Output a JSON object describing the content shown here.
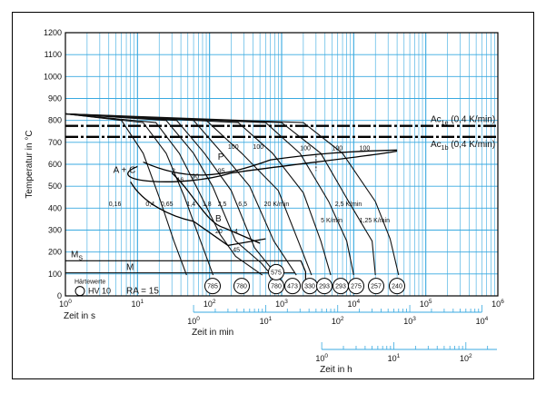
{
  "chart_data": {
    "type": "line",
    "title": "",
    "ylabel": "Temperatur in °C",
    "xlabel": "Zeit in s",
    "xlabel_min": "Zeit in min",
    "xlabel_h": "Zeit in h",
    "x_log": true,
    "xlim": [
      1,
      1000000
    ],
    "ylim": [
      0,
      1200
    ],
    "y_ticks": [
      "0",
      "100",
      "200",
      "300",
      "400",
      "500",
      "600",
      "700",
      "800",
      "900",
      "1000",
      "1100",
      "1200"
    ],
    "x_ticks": [
      {
        "base": "10",
        "exp": "0"
      },
      {
        "base": "10",
        "exp": "1"
      },
      {
        "base": "10",
        "exp": "2"
      },
      {
        "base": "10",
        "exp": "3"
      },
      {
        "base": "10",
        "exp": "4"
      },
      {
        "base": "10",
        "exp": "5"
      },
      {
        "base": "10",
        "exp": "6"
      }
    ],
    "min_ticks": [
      {
        "base": "10",
        "exp": "0"
      },
      {
        "base": "10",
        "exp": "1"
      },
      {
        "base": "10",
        "exp": "2"
      },
      {
        "base": "10",
        "exp": "3"
      },
      {
        "base": "10",
        "exp": "4"
      }
    ],
    "h_ticks": [
      {
        "base": "10",
        "exp": "0"
      },
      {
        "base": "10",
        "exp": "1"
      },
      {
        "base": "10",
        "exp": "2"
      }
    ],
    "grid": true,
    "reference_lines": [
      {
        "label": "Ac",
        "sub": "1e",
        "suffix": " (0,4 K/min)",
        "y": 775
      },
      {
        "label": "Ac",
        "sub": "1b",
        "suffix": " (0,4 K/min)",
        "y": 725
      }
    ],
    "ms": {
      "label": "M",
      "sub": "S",
      "y": 160
    },
    "phase_labels": [
      "A + C",
      "P",
      "B",
      "M"
    ],
    "cooling_rates": [
      "0,16",
      "0,4",
      "0,65",
      "1,4",
      "1,8",
      "2,5",
      "6,5",
      "20 K/min",
      "2,5 K/min",
      "5 K/min",
      "1,25 K/min"
    ],
    "region_numbers": [
      "2",
      "16",
      "90",
      "95",
      "100",
      "100",
      "100",
      "100",
      "100",
      "20",
      "4",
      "45"
    ],
    "hardness_values": [
      "785",
      "780",
      "780",
      "575",
      "473",
      "330",
      "293",
      "293",
      "275",
      "257",
      "240"
    ],
    "legend_title": "Härtewerte",
    "legend_symbol_label": "HV 10",
    "ra_label": "RA = 15"
  }
}
